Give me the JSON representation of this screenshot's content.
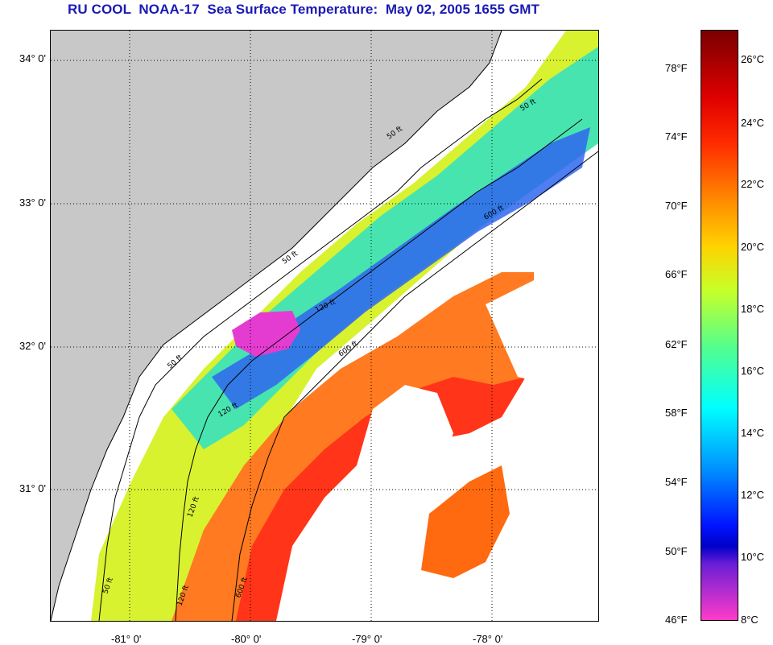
{
  "title": "RU COOL  NOAA-17  Sea Surface Temperature:  May 02, 2005 1655 GMT",
  "map": {
    "lat_labels": [
      "34° 0'",
      "33° 0'",
      "32° 0'",
      "31° 0'"
    ],
    "lon_labels": [
      "-81° 0'",
      "-80° 0'",
      "-79° 0'",
      "-78° 0'"
    ],
    "isobath_labels": [
      "50 ft",
      "50 ft",
      "50 ft",
      "50 ft",
      "50 ft",
      "120 ft",
      "120 ft",
      "120 ft",
      "120 ft",
      "600 ft",
      "600 ft",
      "600 ft"
    ],
    "colors": {
      "land": "#c8c8c8",
      "no_data": "#ffffff",
      "grid": "#000000"
    }
  },
  "colorbar": {
    "fahrenheit_labels": [
      "78°F",
      "74°F",
      "70°F",
      "66°F",
      "62°F",
      "58°F",
      "54°F",
      "50°F",
      "46°F"
    ],
    "celsius_labels": [
      "26°C",
      "24°C",
      "22°C",
      "20°C",
      "18°C",
      "16°C",
      "14°C",
      "12°C",
      "10°C",
      "8°C"
    ],
    "range_celsius": [
      7.8,
      27.8
    ],
    "stops": [
      {
        "color": "#7a0000",
        "celsius": 27.8
      },
      {
        "color": "#e00000",
        "celsius": 25.5
      },
      {
        "color": "#ff2a00",
        "celsius": 24
      },
      {
        "color": "#ff8c00",
        "celsius": 22
      },
      {
        "color": "#ffd200",
        "celsius": 20.5
      },
      {
        "color": "#c8ff28",
        "celsius": 19
      },
      {
        "color": "#50ff90",
        "celsius": 17
      },
      {
        "color": "#00ffff",
        "celsius": 15
      },
      {
        "color": "#0096ff",
        "celsius": 13
      },
      {
        "color": "#0014ff",
        "celsius": 11
      },
      {
        "color": "#0000c8",
        "celsius": 10.3
      },
      {
        "color": "#6a1ed6",
        "celsius": 9.7
      },
      {
        "color": "#ff3cc8",
        "celsius": 7.8
      }
    ]
  }
}
